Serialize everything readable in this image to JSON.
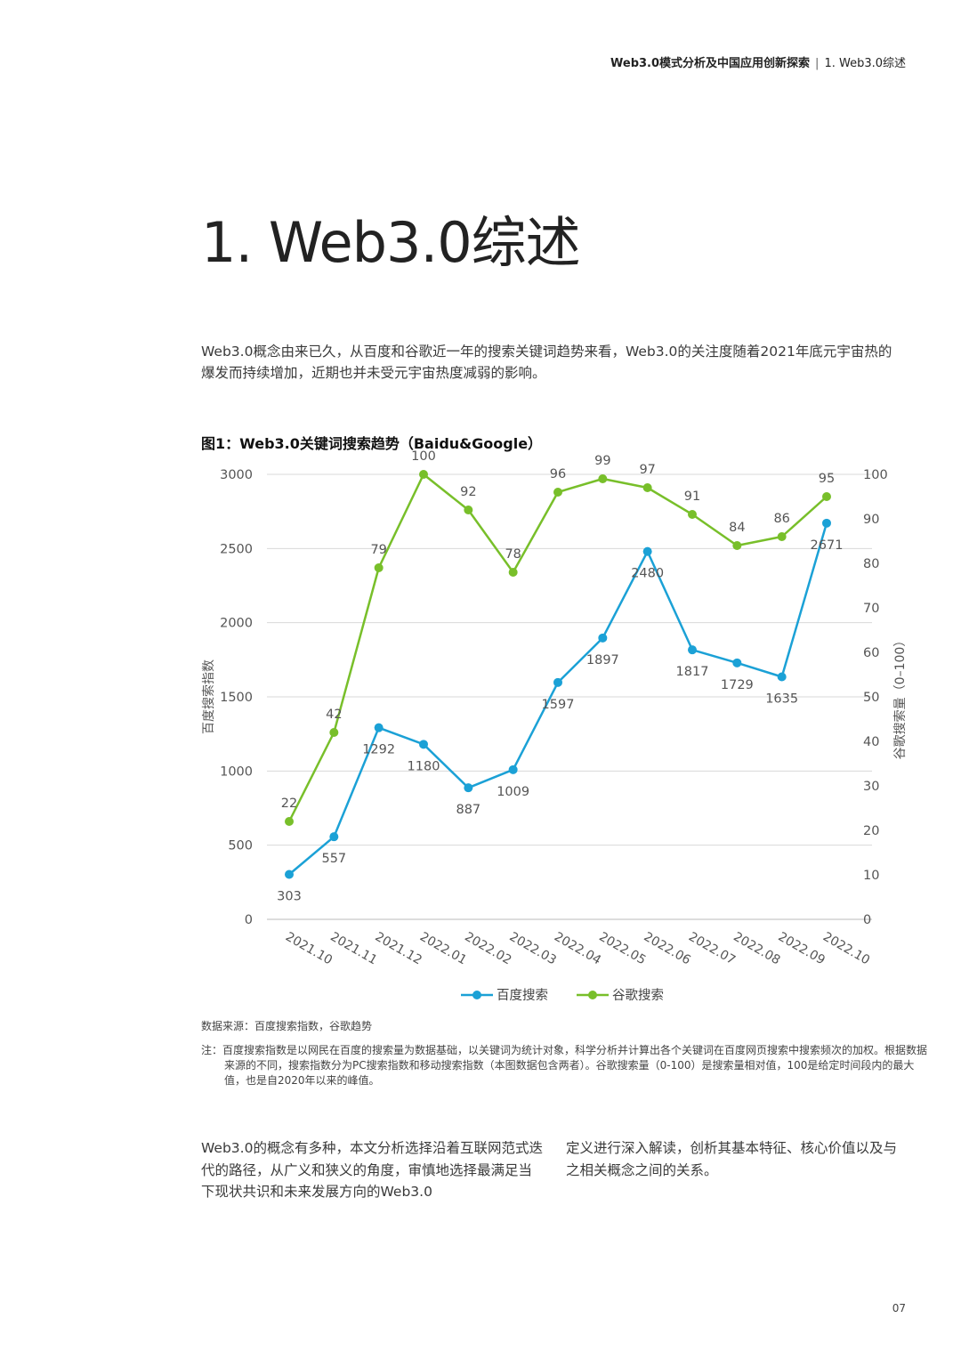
{
  "header": {
    "report_title": "Web3.0模式分析及中国应用创新探索",
    "separator": "|",
    "section": "1. Web3.0综述"
  },
  "section_title": "1. Web3.0综述",
  "intro_text": "Web3.0概念由来已久，从百度和谷歌近一年的搜索关键词趋势来看，Web3.0的关注度随着2021年底元宇宙热的爆发而持续增加，近期也并未受元宇宙热度减弱的影响。",
  "figure_title": "图1：Web3.0关键词搜索趋势（Baidu&Google）",
  "chart_data": {
    "type": "line",
    "title": "图1：Web3.0关键词搜索趋势（Baidu&Google）",
    "x": [
      "2021.10",
      "2021.11",
      "2021.12",
      "2022.01",
      "2022.02",
      "2022.03",
      "2022.04",
      "2022.05",
      "2022.06",
      "2022.07",
      "2022.08",
      "2022.09",
      "2022.10"
    ],
    "ylabel": "百度搜索指数",
    "y2label": "谷歌搜索量（0–100）",
    "ylim": [
      0,
      3000
    ],
    "y2lim": [
      0,
      100
    ],
    "y_ticks": [
      0,
      500,
      1000,
      1500,
      2000,
      2500,
      3000
    ],
    "y2_ticks": [
      0,
      10,
      20,
      30,
      40,
      50,
      60,
      70,
      80,
      90,
      100
    ],
    "grid": true,
    "legend_position": "bottom",
    "series": [
      {
        "name": "百度搜索",
        "axis": "left",
        "color": "#1ba1d6",
        "values": [
          303,
          557,
          1292,
          1180,
          887,
          1009,
          1597,
          1897,
          2480,
          1817,
          1729,
          1635,
          2671
        ]
      },
      {
        "name": "谷歌搜索",
        "axis": "right",
        "color": "#78bf2a",
        "values": [
          22,
          42,
          79,
          100,
          92,
          78,
          96,
          99,
          97,
          91,
          84,
          86,
          95
        ]
      }
    ]
  },
  "source": "数据来源：百度搜索指数，谷歌趋势",
  "note": "注：百度搜索指数是以网民在百度的搜索量为数据基础，以关键词为统计对象，科学分析并计算出各个关键词在百度网页搜索中搜索频次的加权。根据数据来源的不同，搜索指数分为PC搜索指数和移动搜索指数（本图数据包含两者）。谷歌搜索量（0-100）是搜索量相对值，100是给定时间段内的最大值，也是自2020年以来的峰值。",
  "body_left": "Web3.0的概念有多种，本文分析选择沿着互联网范式迭代的路径，从广义和狭义的角度，审慎地选择最满足当下现状共识和未来发展方向的Web3.0",
  "body_right": "定义进行深入解读，创析其基本特征、核心价值以及与之相关概念之间的关系。",
  "page_number": "07"
}
